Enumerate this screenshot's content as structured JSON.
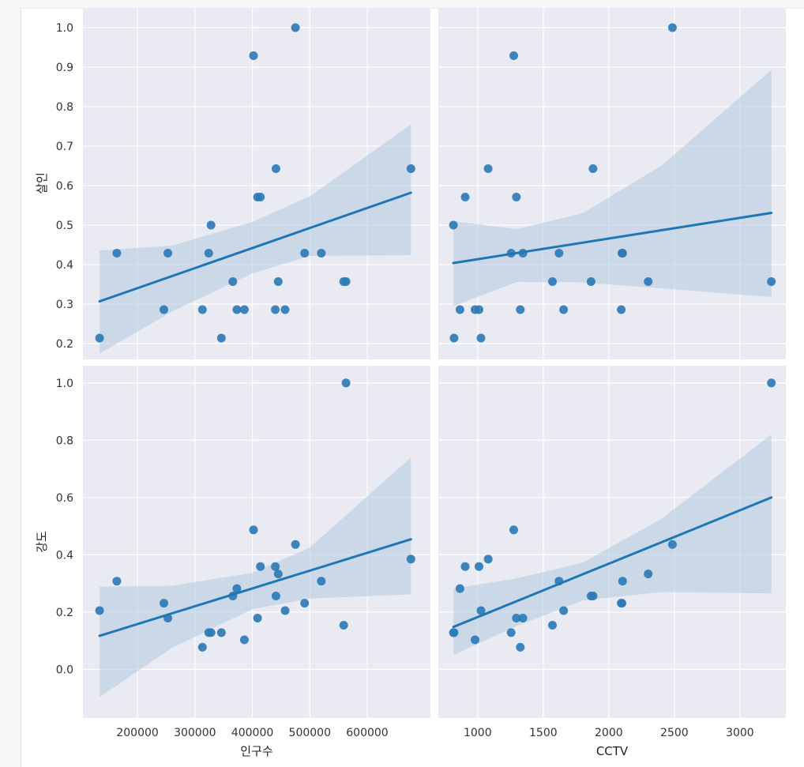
{
  "colors": {
    "panel_bg": "#EAEAF2",
    "grid": "#FFFFFF",
    "point": "#2C7BB6",
    "line": "#1F77B4",
    "ci_band": "#AEC8E0"
  },
  "chart_data": [
    {
      "type": "scatter",
      "panel": "row1-col1",
      "xlabel": "",
      "ylabel": "살인",
      "xlim": [
        105000,
        710000
      ],
      "ylim": [
        0.16,
        1.05
      ],
      "yticks": [
        0.2,
        0.3,
        0.4,
        0.5,
        0.6,
        0.7,
        0.8,
        0.9,
        1.0
      ],
      "ytick_labels": [
        "0.2",
        "0.3",
        "0.4",
        "0.5",
        "0.6",
        "0.7",
        "0.8",
        "0.9",
        "1.0"
      ],
      "xticks": [
        200000,
        300000,
        400000,
        500000,
        600000
      ],
      "xtick_labels": [],
      "grid": true,
      "points": {
        "x": [
          134000,
          164000,
          246000,
          253000,
          313000,
          324000,
          328000,
          346000,
          366000,
          373000,
          386000,
          402000,
          409000,
          414000,
          440000,
          441000,
          445000,
          457000,
          475000,
          491000,
          520000,
          559000,
          563000,
          676000
        ],
        "y": [
          0.214,
          0.429,
          0.286,
          0.429,
          0.286,
          0.429,
          0.5,
          0.214,
          0.357,
          0.286,
          0.286,
          0.929,
          0.571,
          0.571,
          0.286,
          0.643,
          0.357,
          0.286,
          1.0,
          0.429,
          0.429,
          0.357,
          0.357,
          0.643
        ]
      },
      "fit": {
        "x": [
          134000,
          676000
        ],
        "y": [
          0.307,
          0.582
        ]
      },
      "ci": {
        "x": [
          134000,
          260000,
          400000,
          500000,
          676000
        ],
        "upper": [
          0.436,
          0.448,
          0.508,
          0.573,
          0.755
        ],
        "lower": [
          0.175,
          0.281,
          0.378,
          0.422,
          0.424
        ]
      }
    },
    {
      "type": "scatter",
      "panel": "row1-col2",
      "xlabel": "",
      "ylabel": "",
      "xlim": [
        700,
        3350
      ],
      "ylim": [
        0.16,
        1.05
      ],
      "yticks": [
        0.2,
        0.3,
        0.4,
        0.5,
        0.6,
        0.7,
        0.8,
        0.9,
        1.0
      ],
      "ytick_labels": [],
      "xticks": [
        1000,
        1500,
        2000,
        2500,
        3000
      ],
      "xtick_labels": [],
      "grid": true,
      "points": {
        "x": [
          815,
          820,
          865,
          905,
          980,
          1010,
          1025,
          1080,
          1255,
          1275,
          1295,
          1325,
          1345,
          1570,
          1620,
          1655,
          1865,
          1880,
          2095,
          2100,
          2105,
          2300,
          2485,
          3240
        ],
        "y": [
          0.5,
          0.214,
          0.286,
          0.571,
          0.286,
          0.286,
          0.214,
          0.643,
          0.429,
          0.929,
          0.571,
          0.286,
          0.429,
          0.357,
          0.429,
          0.286,
          0.357,
          0.643,
          0.286,
          0.429,
          0.429,
          0.357,
          1.0,
          0.357
        ]
      },
      "fit": {
        "x": [
          815,
          3240
        ],
        "y": [
          0.404,
          0.531
        ]
      },
      "ci": {
        "x": [
          815,
          1300,
          1800,
          2400,
          3240
        ],
        "upper": [
          0.51,
          0.49,
          0.53,
          0.65,
          0.893
        ],
        "lower": [
          0.295,
          0.356,
          0.355,
          0.34,
          0.318
        ]
      }
    },
    {
      "type": "scatter",
      "panel": "row2-col1",
      "xlabel": "인구수",
      "ylabel": "강도",
      "xlim": [
        105000,
        710000
      ],
      "ylim": [
        -0.17,
        1.06
      ],
      "yticks": [
        0.0,
        0.2,
        0.4,
        0.6,
        0.8,
        1.0
      ],
      "ytick_labels": [
        "0.0",
        "0.2",
        "0.4",
        "0.6",
        "0.8",
        "1.0"
      ],
      "xticks": [
        200000,
        300000,
        400000,
        500000,
        600000
      ],
      "xtick_labels": [
        "200000",
        "300000",
        "400000",
        "500000",
        "600000"
      ],
      "grid": true,
      "points": {
        "x": [
          134000,
          164000,
          246000,
          253000,
          313000,
          324000,
          328000,
          346000,
          366000,
          373000,
          386000,
          402000,
          409000,
          414000,
          440000,
          441000,
          445000,
          457000,
          475000,
          491000,
          520000,
          559000,
          563000,
          676000
        ],
        "y": [
          0.205,
          0.308,
          0.231,
          0.179,
          0.077,
          0.128,
          0.128,
          0.128,
          0.256,
          0.282,
          0.103,
          0.487,
          0.179,
          0.359,
          0.359,
          0.256,
          0.333,
          0.205,
          0.436,
          0.231,
          0.308,
          0.154,
          1.0,
          0.385
        ]
      },
      "fit": {
        "x": [
          134000,
          676000
        ],
        "y": [
          0.117,
          0.454
        ]
      },
      "ci": {
        "x": [
          134000,
          260000,
          400000,
          500000,
          676000
        ],
        "upper": [
          0.288,
          0.292,
          0.337,
          0.425,
          0.74
        ],
        "lower": [
          -0.097,
          0.075,
          0.21,
          0.247,
          0.262
        ]
      }
    },
    {
      "type": "scatter",
      "panel": "row2-col2",
      "xlabel": "CCTV",
      "ylabel": "",
      "xlim": [
        700,
        3350
      ],
      "ylim": [
        -0.17,
        1.06
      ],
      "yticks": [
        0.0,
        0.2,
        0.4,
        0.6,
        0.8,
        1.0
      ],
      "ytick_labels": [],
      "xticks": [
        1000,
        1500,
        2000,
        2500,
        3000
      ],
      "xtick_labels": [
        "1000",
        "1500",
        "2000",
        "2500",
        "3000"
      ],
      "grid": true,
      "points": {
        "x": [
          815,
          820,
          865,
          905,
          980,
          1010,
          1025,
          1080,
          1255,
          1275,
          1295,
          1325,
          1345,
          1570,
          1620,
          1655,
          1865,
          1880,
          2095,
          2100,
          2105,
          2300,
          2485,
          3240
        ],
        "y": [
          0.128,
          0.128,
          0.282,
          0.359,
          0.103,
          0.359,
          0.205,
          0.385,
          0.128,
          0.487,
          0.179,
          0.077,
          0.179,
          0.154,
          0.308,
          0.205,
          0.256,
          0.256,
          0.231,
          0.231,
          0.308,
          0.333,
          0.436,
          1.0
        ]
      },
      "fit": {
        "x": [
          815,
          3240
        ],
        "y": [
          0.148,
          0.6
        ]
      },
      "ci": {
        "x": [
          815,
          1300,
          1800,
          2400,
          3240
        ],
        "upper": [
          0.282,
          0.318,
          0.372,
          0.525,
          0.82
        ],
        "lower": [
          0.05,
          0.152,
          0.24,
          0.27,
          0.265
        ]
      }
    }
  ]
}
